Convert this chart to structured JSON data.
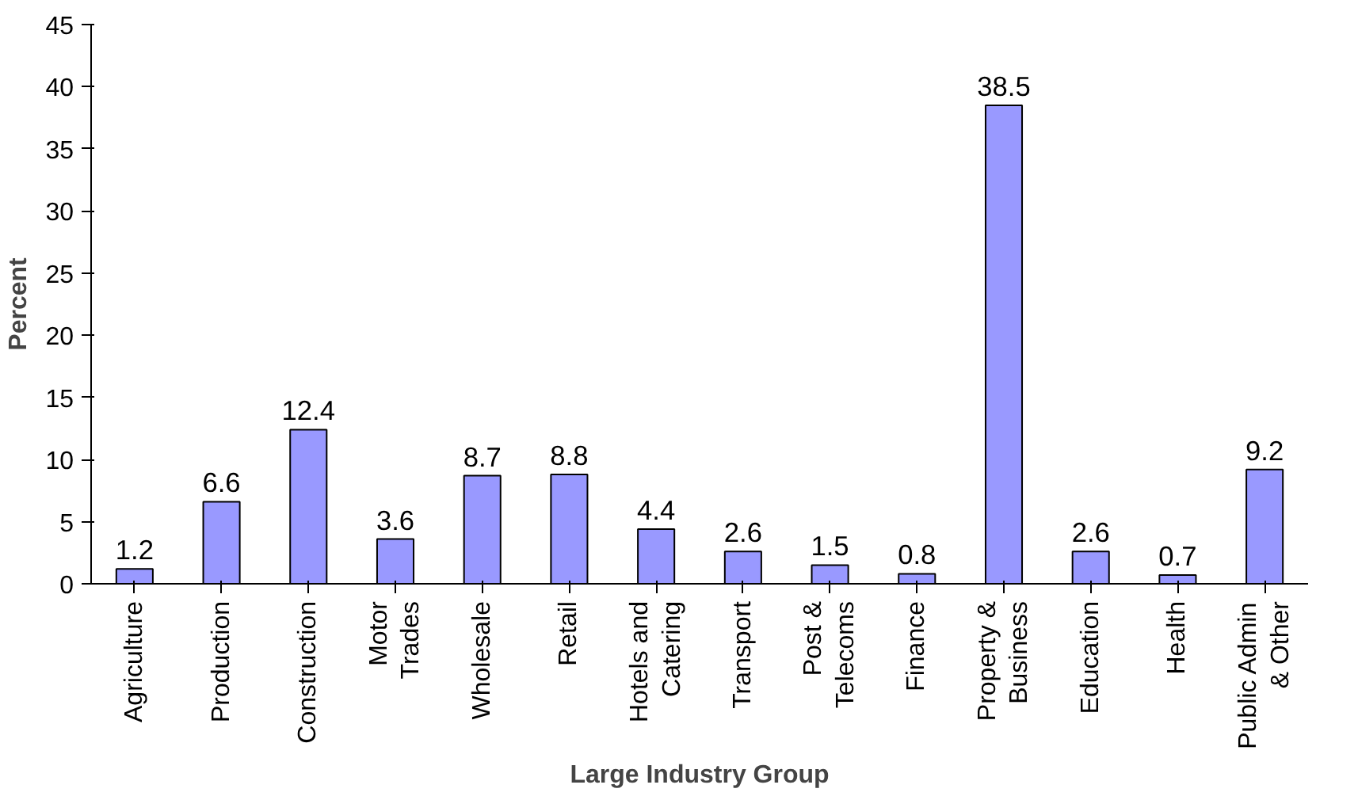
{
  "chart_data": {
    "type": "bar",
    "xlabel": "Large Industry Group",
    "ylabel": "Percent",
    "categories": [
      "Agriculture",
      "Production",
      "Construction",
      "Motor\nTrades",
      "Wholesale",
      "Retail",
      "Hotels and\nCatering",
      "Transport",
      "Post &\nTelecoms",
      "Finance",
      "Property &\nBusiness",
      "Education",
      "Health",
      "Public Admin\n& Other"
    ],
    "values": [
      1.2,
      6.6,
      12.4,
      3.6,
      8.7,
      8.8,
      4.4,
      2.6,
      1.5,
      0.8,
      38.5,
      2.6,
      0.7,
      9.2
    ],
    "color": "#9999ff",
    "ylim": [
      0,
      45
    ],
    "yticks": [
      0,
      5,
      10,
      15,
      20,
      25,
      30,
      35,
      40,
      45
    ],
    "data_labels": true
  }
}
